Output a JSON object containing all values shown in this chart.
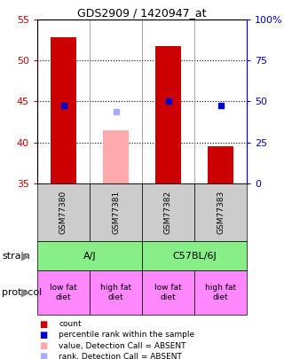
{
  "title": "GDS2909 / 1420947_at",
  "samples": [
    "GSM77380",
    "GSM77381",
    "GSM77382",
    "GSM77383"
  ],
  "bar_values": [
    52.8,
    null,
    51.8,
    39.5
  ],
  "bar_color_present": "#cc0000",
  "bar_color_absent": "#ffaaaa",
  "absent_bar_value": 41.5,
  "absent_bar_index": 1,
  "percentile_values": [
    44.5,
    null,
    45.0,
    44.5
  ],
  "percentile_absent_value": 43.8,
  "percentile_absent_index": 1,
  "ylim": [
    35,
    55
  ],
  "yticks": [
    35,
    40,
    45,
    50,
    55
  ],
  "y2lim": [
    0,
    100
  ],
  "y2ticks": [
    0,
    25,
    50,
    75,
    100
  ],
  "y2labels": [
    "0",
    "25",
    "50",
    "75",
    "100%"
  ],
  "left_color": "#cc0000",
  "right_color": "#0000cc",
  "strain_labels": [
    [
      "A/J",
      0,
      2
    ],
    [
      "C57BL/6J",
      2,
      4
    ]
  ],
  "strain_color": "#88ee88",
  "protocol_labels": [
    "low fat\ndiet",
    "high fat\ndiet",
    "low fat\ndiet",
    "high fat\ndiet"
  ],
  "protocol_color": "#ff88ff",
  "sample_box_color": "#cccccc",
  "bar_width": 0.5,
  "grid_color": "black",
  "grid_linestyle": ":",
  "grid_linewidth": 0.8,
  "legend_items": [
    {
      "color": "#cc0000",
      "label": "count"
    },
    {
      "color": "#0000cc",
      "label": "percentile rank within the sample"
    },
    {
      "color": "#ffaaaa",
      "label": "value, Detection Call = ABSENT"
    },
    {
      "color": "#aaaaff",
      "label": "rank, Detection Call = ABSENT"
    }
  ]
}
